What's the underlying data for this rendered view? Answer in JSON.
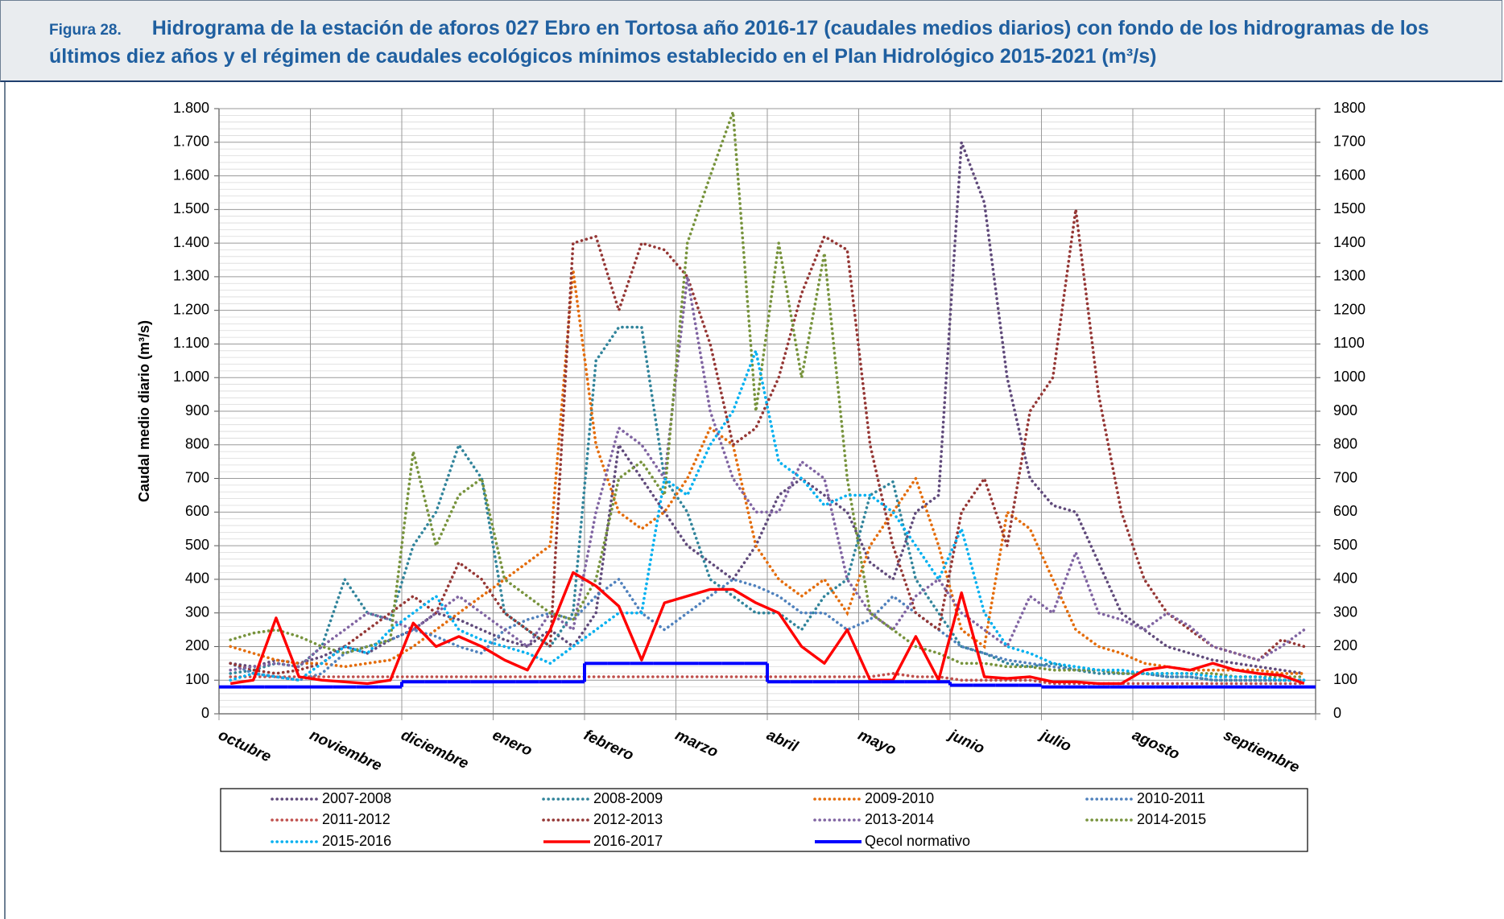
{
  "figure_label": "Figura 28.",
  "chart_data": {
    "type": "line",
    "title": "Hidrograma de la estación de aforos 027 Ebro en Tortosa año 2016-17 (caudales medios diarios) con fondo de los hidrogramas de  los últimos diez años y el régimen de caudales ecológicos mínimos establecido en el Plan Hidrológico 2015-2021 (m³/s)",
    "y_label": "Caudal medio diario (m³/s)",
    "categories": [
      "octubre",
      "noviembre",
      "diciembre",
      "enero",
      "febrero",
      "marzo",
      "abril",
      "mayo",
      "junio",
      "julio",
      "agosto",
      "septiembre"
    ],
    "ylim": [
      0,
      1800
    ],
    "yticks": [
      0,
      100,
      200,
      300,
      400,
      500,
      600,
      700,
      800,
      900,
      {
        "value": 1000,
        "label": "1.000"
      },
      {
        "value": 1100,
        "label": "1.100"
      },
      {
        "value": 1200,
        "label": "1.200"
      },
      {
        "value": 1300,
        "label": "1.300"
      },
      {
        "value": 1400,
        "label": "1.400"
      },
      {
        "value": 1500,
        "label": "1.500"
      },
      {
        "value": 1600,
        "label": "1.600"
      },
      {
        "value": 1700,
        "label": "1.700"
      },
      {
        "value": 1800,
        "label": "1.800"
      }
    ],
    "y2lim": [
      0,
      1800
    ],
    "y2ticks": [
      0,
      100,
      200,
      300,
      400,
      500,
      600,
      700,
      800,
      900,
      1000,
      1100,
      1200,
      1300,
      1400,
      1500,
      1600,
      1700,
      1800
    ],
    "grid": true,
    "minor_grid": true,
    "legend": "bottom",
    "series": [
      {
        "name": "2007-2008",
        "color": "#604a7b",
        "line_style": "dotted",
        "values": [
          [
            150,
            140,
            160,
            150
          ],
          [
            170,
            200,
            180,
            220
          ],
          [
            250,
            300,
            280,
            250
          ],
          [
            220,
            200,
            250,
            200
          ],
          [
            300,
            800,
            700,
            600
          ],
          [
            500,
            450,
            400,
            500
          ],
          [
            650,
            700,
            650,
            600
          ],
          [
            450,
            400,
            600,
            650
          ],
          [
            1700,
            1520,
            1000,
            700
          ],
          [
            620,
            600,
            450,
            300
          ],
          [
            250,
            200,
            180,
            160
          ],
          [
            150,
            140,
            130,
            120
          ]
        ]
      },
      {
        "name": "2008-2009",
        "color": "#31849b",
        "line_style": "dotted",
        "values": [
          [
            120,
            130,
            150,
            140
          ],
          [
            200,
            400,
            300,
            280
          ],
          [
            500,
            600,
            800,
            700
          ],
          [
            300,
            250,
            200,
            300
          ],
          [
            1050,
            1150,
            1150,
            700
          ],
          [
            600,
            400,
            350,
            300
          ],
          [
            300,
            250,
            350,
            400
          ],
          [
            650,
            690,
            400,
            300
          ],
          [
            200,
            180,
            150,
            140
          ],
          [
            150,
            130,
            120,
            120
          ],
          [
            120,
            110,
            110,
            100
          ],
          [
            100,
            100,
            100,
            100
          ]
        ]
      },
      {
        "name": "2009-2010",
        "color": "#e46c0a",
        "line_style": "dotted",
        "values": [
          [
            200,
            180,
            160,
            150
          ],
          [
            150,
            140,
            150,
            160
          ],
          [
            200,
            250,
            300,
            350
          ],
          [
            400,
            450,
            500,
            1320
          ],
          [
            800,
            600,
            550,
            600
          ],
          [
            700,
            850,
            800,
            500
          ],
          [
            400,
            350,
            400,
            300
          ],
          [
            500,
            600,
            700,
            500
          ],
          [
            250,
            200,
            600,
            550
          ],
          [
            400,
            250,
            200,
            180
          ],
          [
            150,
            140,
            130,
            130
          ],
          [
            130,
            130,
            120,
            120
          ]
        ]
      },
      {
        "name": "2010-2011",
        "color": "#4f81bd",
        "line_style": "dotted",
        "values": [
          [
            150,
            120,
            110,
            100
          ],
          [
            120,
            180,
            200,
            220
          ],
          [
            250,
            230,
            200,
            180
          ],
          [
            250,
            280,
            300,
            280
          ],
          [
            350,
            400,
            300,
            250
          ],
          [
            300,
            350,
            400,
            380
          ],
          [
            350,
            300,
            300,
            250
          ],
          [
            280,
            350,
            300,
            250
          ],
          [
            200,
            180,
            160,
            150
          ],
          [
            140,
            130,
            130,
            120
          ],
          [
            120,
            110,
            110,
            100
          ],
          [
            100,
            100,
            100,
            100
          ]
        ]
      },
      {
        "name": "2011-2012",
        "color": "#c0504d",
        "line_style": "dotted",
        "values": [
          [
            110,
            110,
            110,
            110
          ],
          [
            110,
            110,
            110,
            110
          ],
          [
            110,
            110,
            110,
            110
          ],
          [
            110,
            110,
            110,
            110
          ],
          [
            110,
            110,
            110,
            110
          ],
          [
            110,
            110,
            110,
            110
          ],
          [
            110,
            110,
            110,
            110
          ],
          [
            110,
            120,
            110,
            110
          ],
          [
            100,
            100,
            100,
            100
          ],
          [
            90,
            90,
            90,
            90
          ],
          [
            90,
            90,
            90,
            90
          ],
          [
            90,
            90,
            90,
            90
          ]
        ]
      },
      {
        "name": "2012-2013",
        "color": "#953735",
        "line_style": "dotted",
        "values": [
          [
            150,
            130,
            120,
            130
          ],
          [
            150,
            200,
            250,
            300
          ],
          [
            350,
            300,
            450,
            400
          ],
          [
            300,
            250,
            200,
            1400
          ],
          [
            1420,
            1200,
            1400,
            1380
          ],
          [
            1300,
            1100,
            800,
            850
          ],
          [
            1000,
            1250,
            1420,
            1380
          ],
          [
            800,
            500,
            300,
            250
          ],
          [
            600,
            700,
            500,
            900
          ],
          [
            1000,
            1500,
            950,
            600
          ],
          [
            400,
            300,
            250,
            200
          ],
          [
            180,
            160,
            220,
            200
          ]
        ]
      },
      {
        "name": "2013-2014",
        "color": "#8064a2",
        "line_style": "dotted",
        "values": [
          [
            130,
            140,
            150,
            140
          ],
          [
            200,
            250,
            300,
            280
          ],
          [
            250,
            300,
            350,
            300
          ],
          [
            250,
            200,
            300,
            250
          ],
          [
            600,
            850,
            800,
            700
          ],
          [
            1300,
            900,
            700,
            600
          ],
          [
            600,
            750,
            700,
            400
          ],
          [
            300,
            250,
            350,
            400
          ],
          [
            300,
            250,
            200,
            350
          ],
          [
            300,
            480,
            300,
            280
          ],
          [
            250,
            300,
            260,
            200
          ],
          [
            180,
            160,
            200,
            250
          ]
        ]
      },
      {
        "name": "2014-2015",
        "color": "#77933c",
        "line_style": "dotted",
        "values": [
          [
            220,
            240,
            250,
            230
          ],
          [
            200,
            180,
            200,
            220
          ],
          [
            780,
            500,
            650,
            700
          ],
          [
            400,
            350,
            300,
            280
          ],
          [
            400,
            700,
            750,
            650
          ],
          [
            1400,
            1600,
            1790,
            900
          ],
          [
            1400,
            1000,
            1370,
            700
          ],
          [
            300,
            250,
            200,
            180
          ],
          [
            150,
            150,
            140,
            140
          ],
          [
            130,
            130,
            130,
            120
          ],
          [
            120,
            120,
            120,
            120
          ],
          [
            110,
            110,
            110,
            110
          ]
        ]
      },
      {
        "name": "2015-2016",
        "color": "#00b0f0",
        "line_style": "dotted",
        "values": [
          [
            100,
            120,
            110,
            100
          ],
          [
            150,
            200,
            180,
            250
          ],
          [
            300,
            350,
            250,
            220
          ],
          [
            200,
            180,
            150,
            200
          ],
          [
            250,
            300,
            300,
            700
          ],
          [
            650,
            800,
            900,
            1080
          ],
          [
            750,
            700,
            620,
            650
          ],
          [
            650,
            600,
            500,
            400
          ],
          [
            550,
            300,
            200,
            180
          ],
          [
            150,
            140,
            130,
            130
          ],
          [
            120,
            120,
            120,
            110
          ],
          [
            110,
            110,
            100,
            100
          ]
        ]
      },
      {
        "name": "2016-2017",
        "color": "#ff0000",
        "line_style": "solid",
        "values": [
          [
            90,
            100,
            285,
            110
          ],
          [
            100,
            95,
            90,
            100
          ],
          [
            270,
            200,
            230,
            200
          ],
          [
            160,
            130,
            250,
            420
          ],
          [
            380,
            320,
            160,
            330
          ],
          [
            350,
            370,
            370,
            330
          ],
          [
            300,
            200,
            150,
            250
          ],
          [
            100,
            100,
            230,
            100
          ],
          [
            360,
            110,
            105,
            110
          ],
          [
            95,
            95,
            90,
            90
          ],
          [
            130,
            140,
            130,
            150
          ],
          [
            130,
            120,
            115,
            90
          ]
        ]
      },
      {
        "name": "Qecol normativo",
        "color": "#0000ff",
        "line_style": "step",
        "values": [
          [
            80,
            80,
            80,
            80
          ],
          [
            80,
            80,
            80,
            80
          ],
          [
            95,
            95,
            95,
            95
          ],
          [
            95,
            95,
            95,
            95
          ],
          [
            150,
            150,
            150,
            150
          ],
          [
            150,
            150,
            150,
            150
          ],
          [
            95,
            95,
            95,
            95
          ],
          [
            95,
            95,
            95,
            95
          ],
          [
            85,
            85,
            85,
            85
          ],
          [
            80,
            80,
            80,
            80
          ],
          [
            80,
            80,
            80,
            80
          ],
          [
            80,
            80,
            80,
            80
          ]
        ]
      }
    ]
  }
}
